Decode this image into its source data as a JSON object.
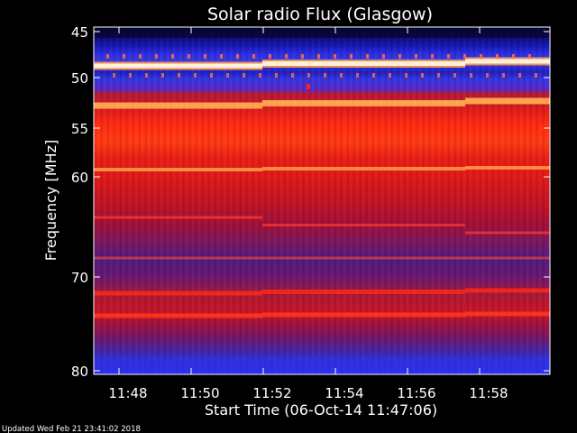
{
  "chart_data": {
    "type": "heatmap",
    "title": "Solar radio Flux (Glasgow)",
    "ylabel_text": "Frequency ",
    "ylabel_unit": "[MHz]",
    "xlabel": "Start Time (06-Oct-14 11:47:06)",
    "footer": "Updated Wed Feb 21 23:41:02 2018",
    "x_ticks": [
      "11:48",
      "11:50",
      "11:52",
      "11:54",
      "11:56",
      "11:58"
    ],
    "y_ticks": [
      "45",
      "50",
      "55",
      "60",
      "70",
      "80"
    ],
    "y_scale": "reciprocal (frequency axis, high at bottom)",
    "colormap": [
      "#0a0a6e",
      "#2f2fd8",
      "#8a1aa0",
      "#c8142a",
      "#ff3a14",
      "#ff8c3c",
      "#ffe6b4"
    ],
    "bands": [
      {
        "freq_mhz": 48.7,
        "level": "saturated"
      },
      {
        "freq_mhz": 52.5,
        "level": "strong"
      },
      {
        "freq_mhz": 56.5,
        "level": "high"
      },
      {
        "freq_mhz": 59.5,
        "level": "strong"
      },
      {
        "freq_mhz": 71.5,
        "level": "high"
      },
      {
        "freq_mhz": 73.5,
        "level": "high"
      }
    ]
  }
}
